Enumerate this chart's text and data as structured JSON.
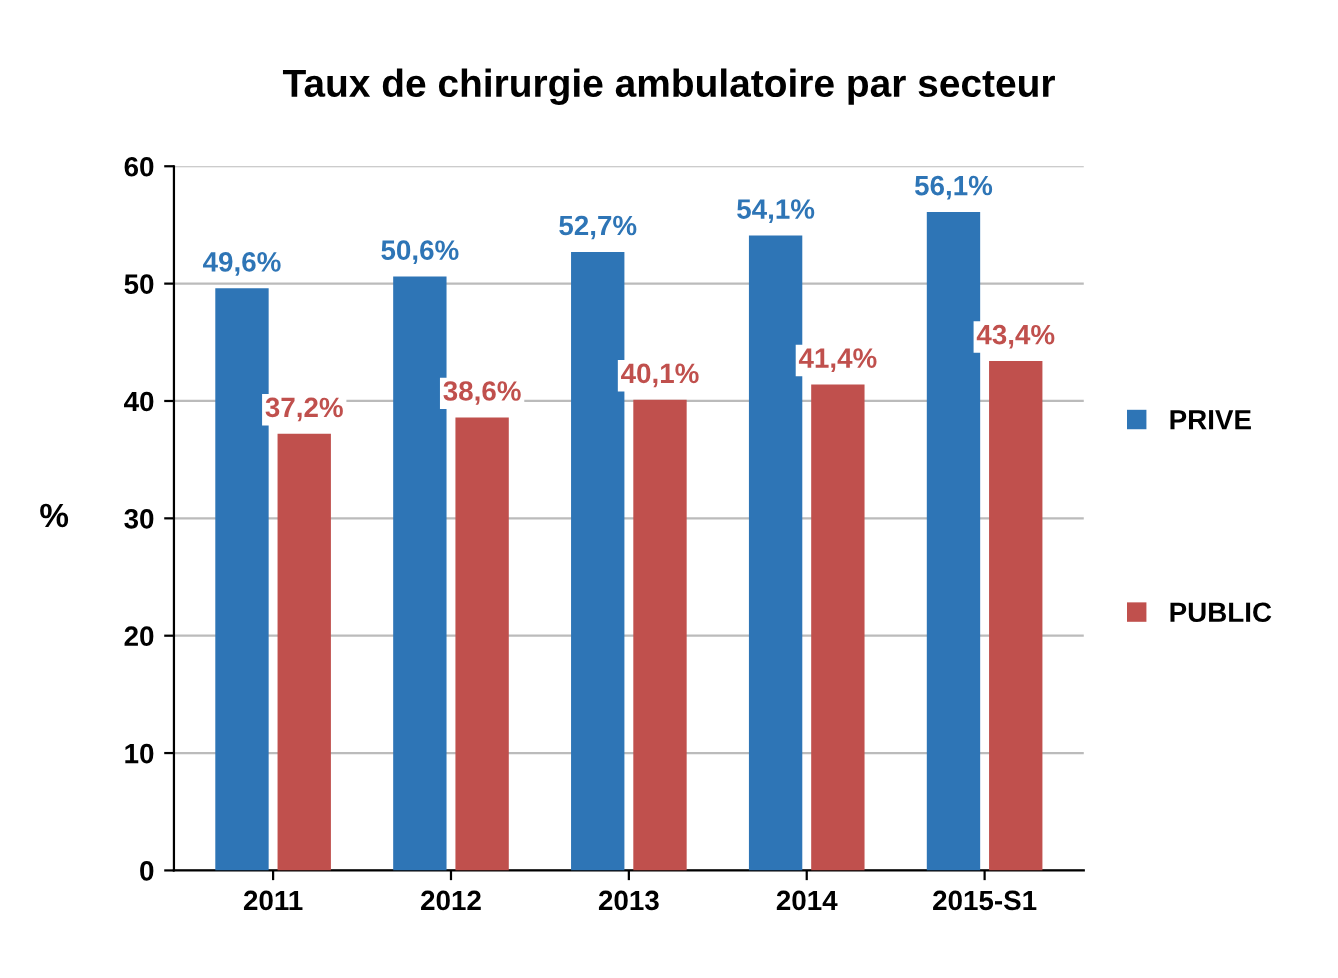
{
  "chart_data": {
    "type": "bar",
    "title": "Taux de chirurgie ambulatoire par secteur",
    "ylabel": "%",
    "categories": [
      "2011",
      "2012",
      "2013",
      "2014",
      "2015-S1"
    ],
    "series": [
      {
        "name": "PRIVE",
        "color": "#2e75b6",
        "values": [
          49.6,
          50.6,
          52.7,
          54.1,
          56.1
        ],
        "value_labels": [
          "49,6%",
          "50,6%",
          "52,7%",
          "54,1%",
          "56,1%"
        ]
      },
      {
        "name": "PUBLIC",
        "color": "#c0504d",
        "values": [
          37.2,
          38.6,
          40.1,
          41.4,
          43.4
        ],
        "value_labels": [
          "37,2%",
          "38,6%",
          "40,1%",
          "41,4%",
          "43,4%"
        ]
      }
    ],
    "ylim": [
      0,
      60
    ],
    "yticks": [
      0,
      10,
      20,
      30,
      40,
      50,
      60
    ],
    "grid": "y",
    "legend": "right"
  }
}
